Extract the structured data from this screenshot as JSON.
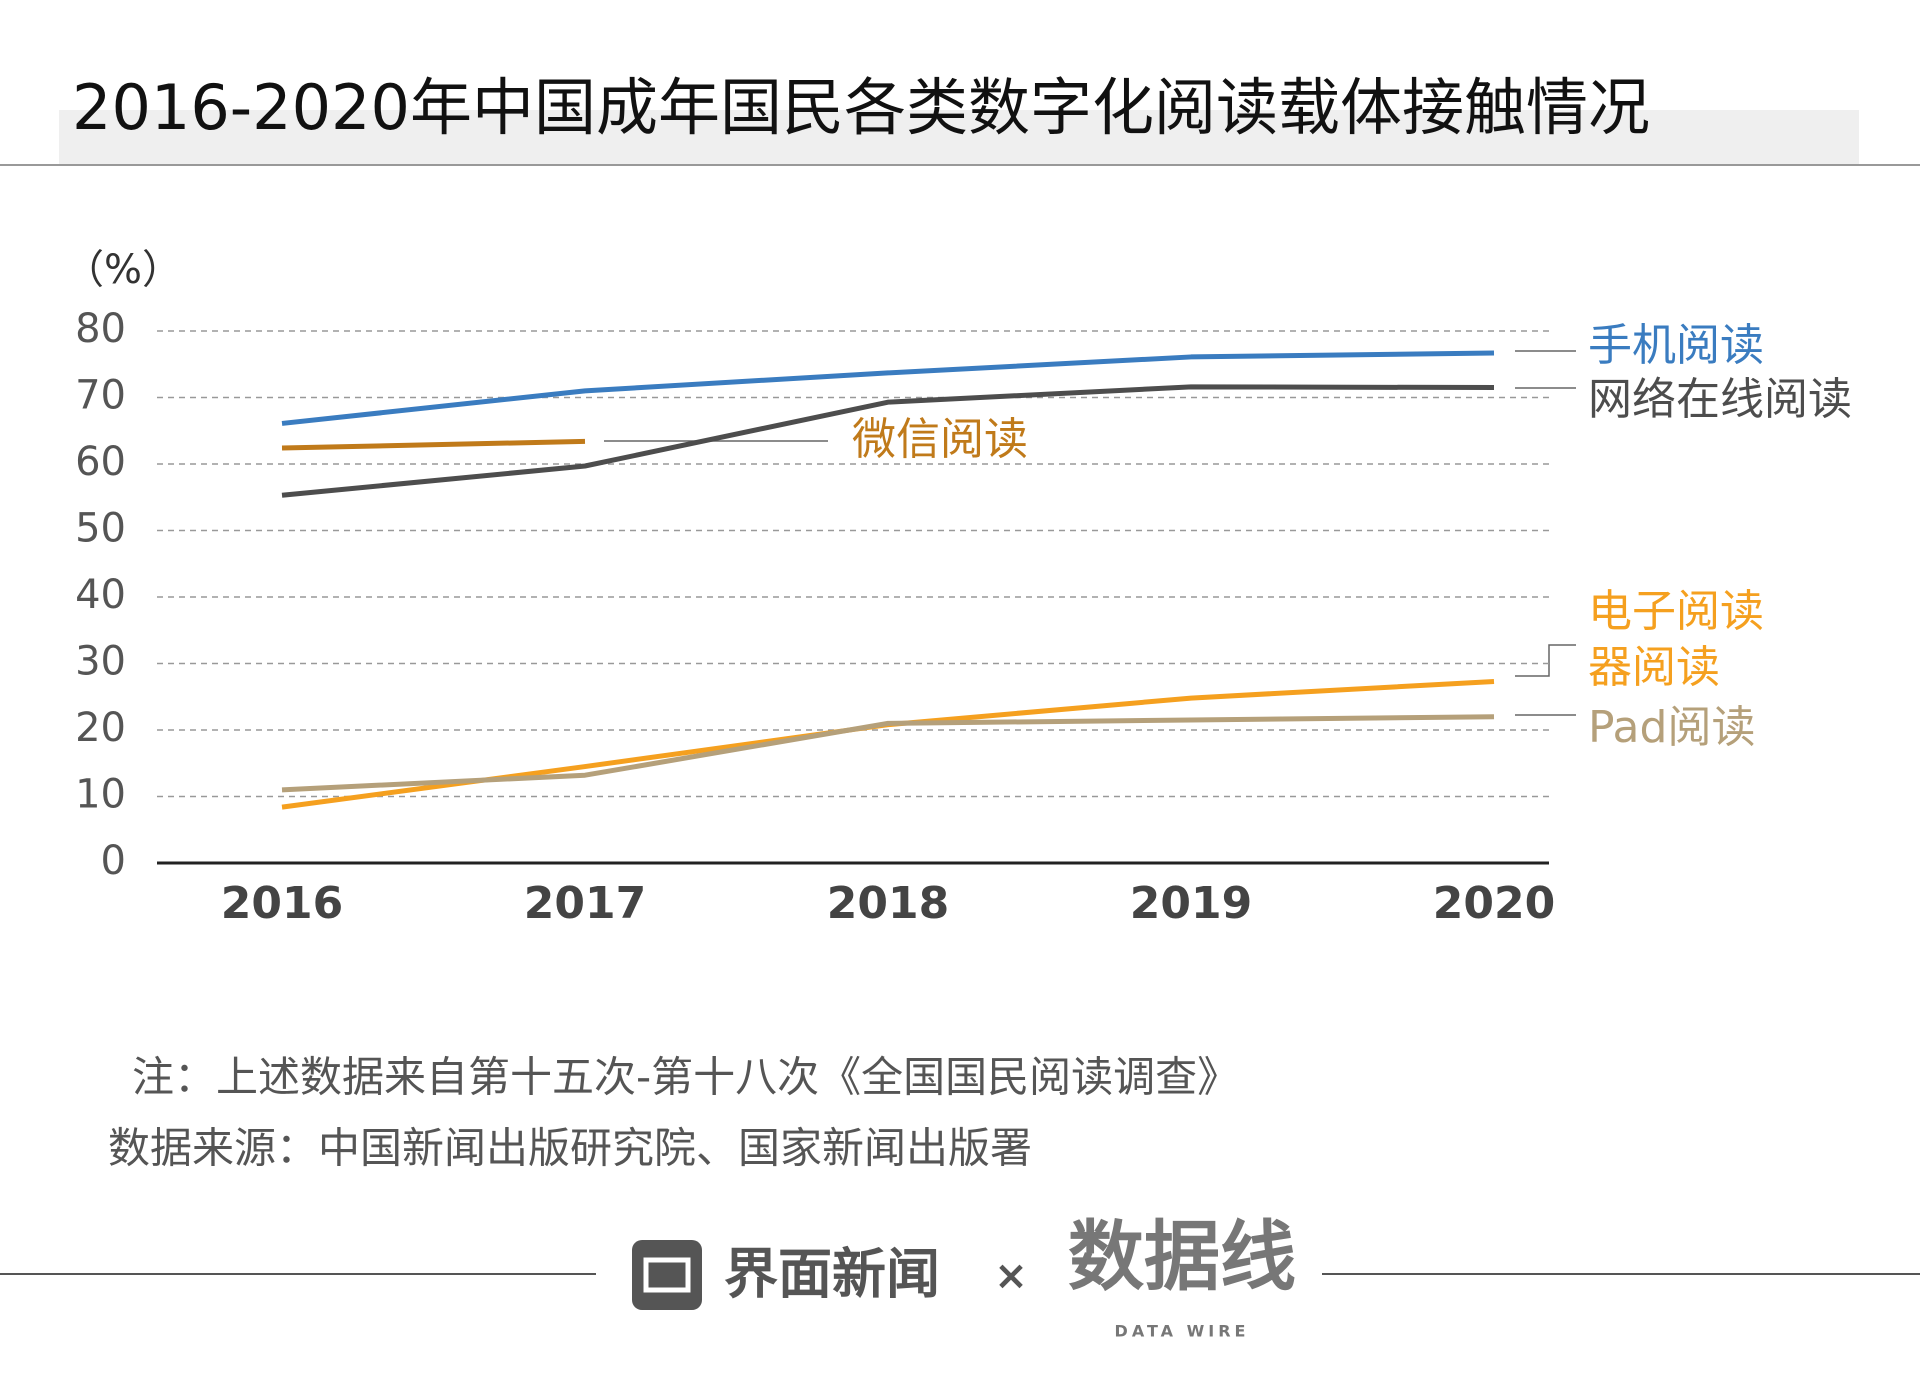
{
  "chart_data": {
    "type": "line",
    "title": "2016-2020年中国成年国民各类数字化阅读载体接触情况",
    "ylabel": "（%）",
    "categories": [
      "2016",
      "2017",
      "2018",
      "2019",
      "2020"
    ],
    "series": [
      {
        "name": "手机阅读",
        "color": "#3a7cc0",
        "values": [
          66.1,
          71.0,
          73.7,
          76.1,
          76.7
        ]
      },
      {
        "name": "网络在线阅读",
        "color": "#4d4d4d",
        "values": [
          55.3,
          59.7,
          69.3,
          71.6,
          71.5
        ]
      },
      {
        "name": "微信阅读",
        "color": "#c07a1a",
        "values": [
          62.4,
          63.4,
          null,
          null,
          null
        ]
      },
      {
        "name": "电子阅读器阅读",
        "color": "#f5a01f",
        "values": [
          8.4,
          14.5,
          20.8,
          24.8,
          27.3
        ]
      },
      {
        "name": "Pad阅读",
        "color": "#b5a07a",
        "values": [
          11.0,
          13.2,
          21.0,
          21.5,
          22.0
        ]
      }
    ],
    "ylim": [
      0,
      80
    ],
    "yticks": [
      0,
      10,
      20,
      30,
      40,
      50,
      60,
      70,
      80
    ],
    "grid": true,
    "notes": [
      "注：上述数据来自第十五次-第十八次《全国国民阅读调查》",
      "数据来源：中国新闻出版研究院、国家新闻出版署"
    ]
  },
  "footer": {
    "brand": "界面新闻",
    "times": "×",
    "logo": "数据线",
    "logo_sub": "DATA WIRE"
  }
}
